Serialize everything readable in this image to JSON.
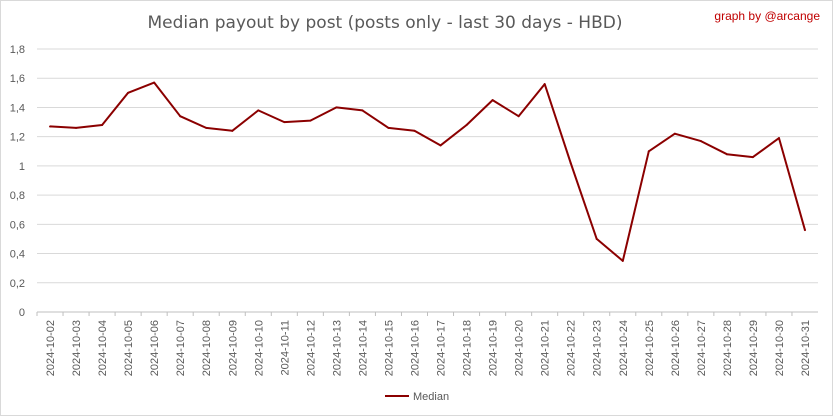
{
  "chart_data": {
    "type": "line",
    "title": "Median payout by post (posts only - last 30 days - HBD)",
    "credit": "graph by @arcange",
    "xlabel": "",
    "ylabel": "",
    "ylim": [
      0,
      1.8
    ],
    "yticks": [
      "0",
      "0,2",
      "0,4",
      "0,6",
      "0,8",
      "1",
      "1,2",
      "1,4",
      "1,6",
      "1,8"
    ],
    "grid": true,
    "legend_position": "bottom",
    "categories": [
      "2024-10-02",
      "2024-10-03",
      "2024-10-04",
      "2024-10-05",
      "2024-10-06",
      "2024-10-07",
      "2024-10-08",
      "2024-10-09",
      "2024-10-10",
      "2024-10-11",
      "2024-10-12",
      "2024-10-13",
      "2024-10-14",
      "2024-10-15",
      "2024-10-16",
      "2024-10-17",
      "2024-10-18",
      "2024-10-19",
      "2024-10-20",
      "2024-10-21",
      "2024-10-22",
      "2024-10-23",
      "2024-10-24",
      "2024-10-25",
      "2024-10-26",
      "2024-10-27",
      "2024-10-28",
      "2024-10-29",
      "2024-10-30",
      "2024-10-31"
    ],
    "series": [
      {
        "name": "Median",
        "color": "#8b0000",
        "values": [
          1.27,
          1.26,
          1.28,
          1.5,
          1.57,
          1.34,
          1.26,
          1.24,
          1.38,
          1.3,
          1.31,
          1.4,
          1.38,
          1.26,
          1.24,
          1.14,
          1.28,
          1.45,
          1.34,
          1.56,
          1.02,
          0.5,
          0.35,
          1.1,
          1.22,
          1.17,
          1.08,
          1.06,
          1.19,
          0.56
        ]
      }
    ]
  }
}
